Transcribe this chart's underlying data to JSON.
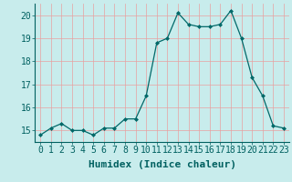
{
  "x": [
    0,
    1,
    2,
    3,
    4,
    5,
    6,
    7,
    8,
    9,
    10,
    11,
    12,
    13,
    14,
    15,
    16,
    17,
    18,
    19,
    20,
    21,
    22,
    23
  ],
  "y": [
    14.8,
    15.1,
    15.3,
    15.0,
    15.0,
    14.8,
    15.1,
    15.1,
    15.5,
    15.5,
    16.5,
    18.8,
    19.0,
    20.1,
    19.6,
    19.5,
    19.5,
    19.6,
    20.2,
    19.0,
    17.3,
    16.5,
    15.2,
    15.1
  ],
  "xlabel": "Humidex (Indice chaleur)",
  "xlim": [
    -0.5,
    23.5
  ],
  "ylim": [
    14.5,
    20.5
  ],
  "yticks": [
    15,
    16,
    17,
    18,
    19,
    20
  ],
  "xticks": [
    0,
    1,
    2,
    3,
    4,
    5,
    6,
    7,
    8,
    9,
    10,
    11,
    12,
    13,
    14,
    15,
    16,
    17,
    18,
    19,
    20,
    21,
    22,
    23
  ],
  "line_color": "#006868",
  "marker_color": "#006868",
  "bg_color": "#c8ecec",
  "grid_color": "#e8a0a0",
  "xlabel_fontsize": 8,
  "tick_fontsize": 7,
  "tick_color": "#006060"
}
